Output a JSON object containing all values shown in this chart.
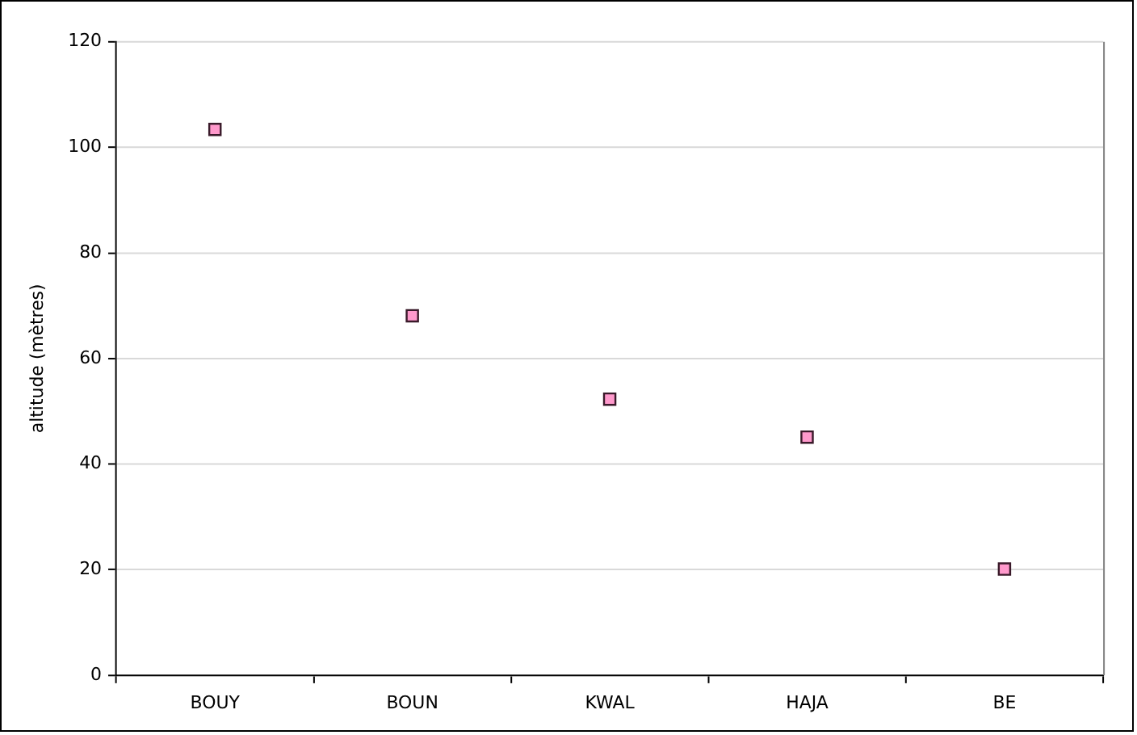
{
  "chart_data": {
    "type": "scatter",
    "ylabel": "altitude (mètres)",
    "categories": [
      "BOUY",
      "BOUN",
      "KWAL",
      "HAJA",
      "BE"
    ],
    "series": [
      {
        "color": "#ff99cc",
        "values": [
          103.4,
          68.1,
          52.3,
          45.1,
          20.1
        ]
      }
    ],
    "ylim": [
      0,
      120
    ],
    "yticks": [
      0,
      20,
      40,
      60,
      80,
      100,
      120
    ],
    "grid": "y",
    "legend": false,
    "marker": "square"
  }
}
